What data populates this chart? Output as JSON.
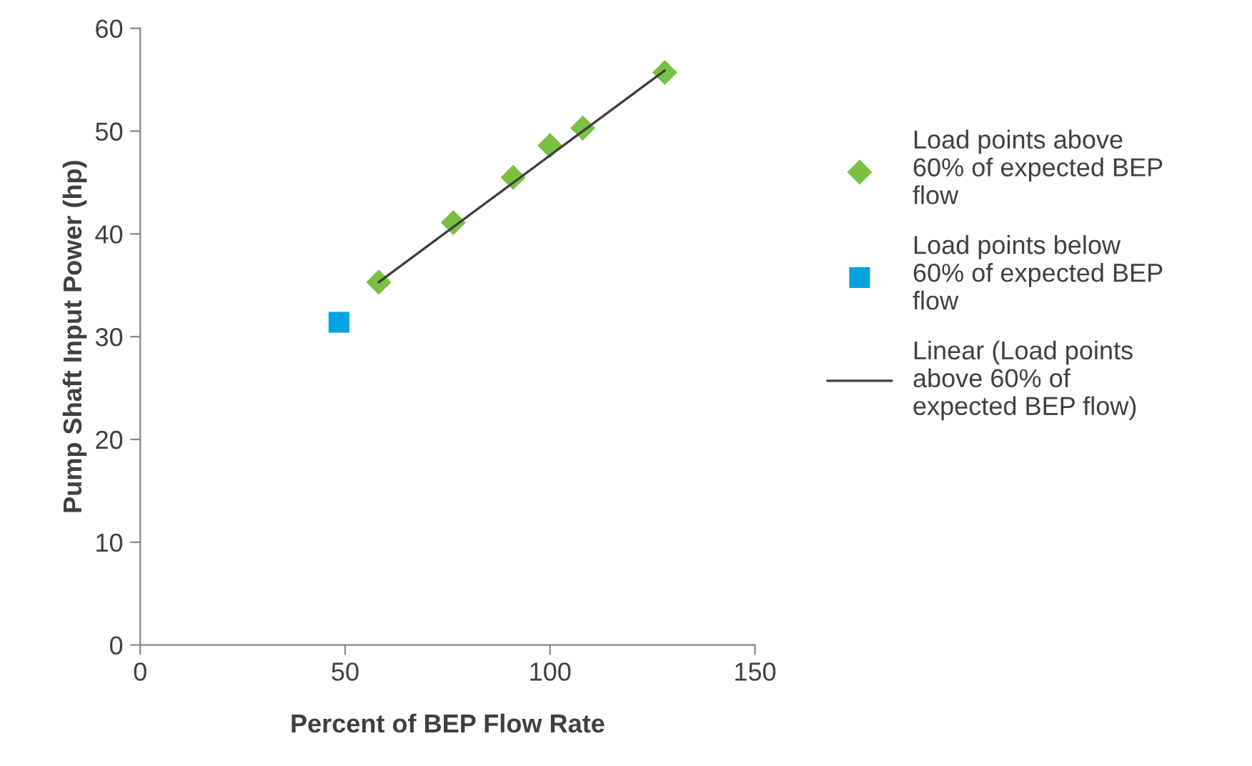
{
  "chart_data": {
    "type": "scatter",
    "xlabel": "Percent of BEP Flow Rate",
    "ylabel": "Pump Shaft Input Power (hp)",
    "xlim": [
      0,
      150
    ],
    "xticks": [
      0,
      50,
      100,
      150
    ],
    "ylim": [
      0,
      60
    ],
    "yticks": [
      0,
      10,
      20,
      30,
      40,
      50,
      60
    ],
    "grid": false,
    "legend": "right",
    "series": [
      {
        "name": "Load points above 60% of expected BEP flow",
        "color": "#7ac143",
        "marker": "diamond",
        "x": [
          58.2,
          76.4,
          91,
          100,
          108,
          128
        ],
        "values": [
          35.3,
          41.1,
          45.5,
          48.6,
          50.3,
          55.7
        ]
      },
      {
        "name": "Load points below 60% of expected BEP flow",
        "color": "#00a2e0",
        "marker": "square",
        "x": [
          48.5
        ],
        "values": [
          31.4
        ]
      },
      {
        "name": "Linear (Load points above 60% of expected BEP flow)",
        "type": "line",
        "color": "#404040",
        "marker": "none",
        "x": [
          58.2,
          128
        ],
        "values": [
          35.3,
          55.9
        ]
      }
    ]
  }
}
